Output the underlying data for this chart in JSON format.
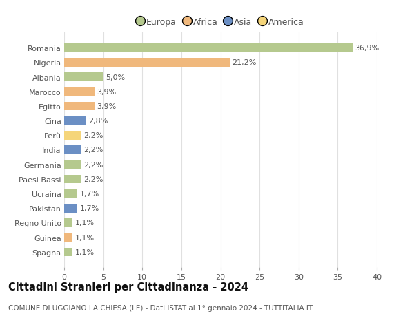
{
  "countries": [
    "Romania",
    "Nigeria",
    "Albania",
    "Marocco",
    "Egitto",
    "Cina",
    "Perù",
    "India",
    "Germania",
    "Paesi Bassi",
    "Ucraina",
    "Pakistan",
    "Regno Unito",
    "Guinea",
    "Spagna"
  ],
  "values": [
    36.9,
    21.2,
    5.0,
    3.9,
    3.9,
    2.8,
    2.2,
    2.2,
    2.2,
    2.2,
    1.7,
    1.7,
    1.1,
    1.1,
    1.1
  ],
  "labels": [
    "36,9%",
    "21,2%",
    "5,0%",
    "3,9%",
    "3,9%",
    "2,8%",
    "2,2%",
    "2,2%",
    "2,2%",
    "2,2%",
    "1,7%",
    "1,7%",
    "1,1%",
    "1,1%",
    "1,1%"
  ],
  "colors": [
    "#b5c98e",
    "#f0b87c",
    "#b5c98e",
    "#f0b87c",
    "#f0b87c",
    "#6b8fc4",
    "#f5d57a",
    "#6b8fc4",
    "#b5c98e",
    "#b5c98e",
    "#b5c98e",
    "#6b8fc4",
    "#b5c98e",
    "#f0b87c",
    "#b5c98e"
  ],
  "continent_labels": [
    "Europa",
    "Africa",
    "Asia",
    "America"
  ],
  "continent_colors": [
    "#b5c98e",
    "#f0b87c",
    "#6b8fc4",
    "#f5d57a"
  ],
  "title": "Cittadini Stranieri per Cittadinanza - 2024",
  "subtitle": "COMUNE DI UGGIANO LA CHIESA (LE) - Dati ISTAT al 1° gennaio 2024 - TUTTITALIA.IT",
  "xlim": [
    0,
    40
  ],
  "xticks": [
    0,
    5,
    10,
    15,
    20,
    25,
    30,
    35,
    40
  ],
  "background_color": "#ffffff",
  "grid_color": "#e0e0e0",
  "bar_height": 0.6,
  "label_fontsize": 8,
  "tick_fontsize": 8,
  "title_fontsize": 10.5,
  "subtitle_fontsize": 7.5,
  "legend_fontsize": 9
}
